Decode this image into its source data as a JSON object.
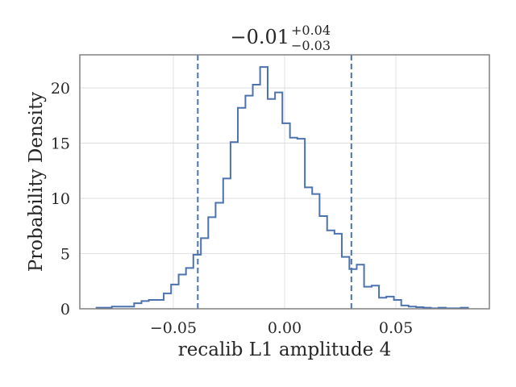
{
  "chart_data": {
    "type": "histogram",
    "title": {
      "value": "−0.01",
      "upper": "+0.04",
      "lower": "−0.03"
    },
    "xlabel": "recalib L1 amplitude 4",
    "ylabel": "Probability Density",
    "xlim": [
      -0.092,
      0.092
    ],
    "ylim": [
      0,
      23
    ],
    "xticks": [
      -0.05,
      0.0,
      0.05
    ],
    "xtick_labels": [
      "−0.05",
      "0.00",
      "0.05"
    ],
    "yticks": [
      0,
      5,
      10,
      15,
      20
    ],
    "ytick_labels": [
      "0",
      "5",
      "10",
      "15",
      "20"
    ],
    "grid": true,
    "line_color": "#4c72b0",
    "quantile_lines": [
      -0.039,
      0.03
    ],
    "bin_edges": [
      -0.0845,
      -0.081,
      -0.0776,
      -0.0743,
      -0.071,
      -0.0676,
      -0.0643,
      -0.061,
      -0.0576,
      -0.0543,
      -0.051,
      -0.0476,
      -0.0443,
      -0.041,
      -0.0376,
      -0.0343,
      -0.031,
      -0.0276,
      -0.0243,
      -0.021,
      -0.0176,
      -0.0143,
      -0.011,
      -0.0076,
      -0.0043,
      -0.001,
      0.0024,
      0.0057,
      0.0091,
      0.0124,
      0.0157,
      0.0191,
      0.0224,
      0.0257,
      0.0291,
      0.0324,
      0.0357,
      0.0391,
      0.0424,
      0.0457,
      0.0491,
      0.0524,
      0.0557,
      0.0591,
      0.0624,
      0.0657,
      0.0691,
      0.0724,
      0.0757,
      0.0791,
      0.0824
    ],
    "densities": [
      0.1,
      0.1,
      0.2,
      0.2,
      0.2,
      0.5,
      0.7,
      0.8,
      0.8,
      1.4,
      2.2,
      3.1,
      3.7,
      4.9,
      6.4,
      8.3,
      9.6,
      11.8,
      15.1,
      18.2,
      19.3,
      20.3,
      21.9,
      19.0,
      19.6,
      16.8,
      15.5,
      15.4,
      11.0,
      10.4,
      8.4,
      7.1,
      6.8,
      4.7,
      3.6,
      4.0,
      2.0,
      2.1,
      1.0,
      1.1,
      0.8,
      0.3,
      0.2,
      0.15,
      0.1,
      0.05,
      0.1,
      0.05,
      0.05,
      0.1
    ]
  }
}
